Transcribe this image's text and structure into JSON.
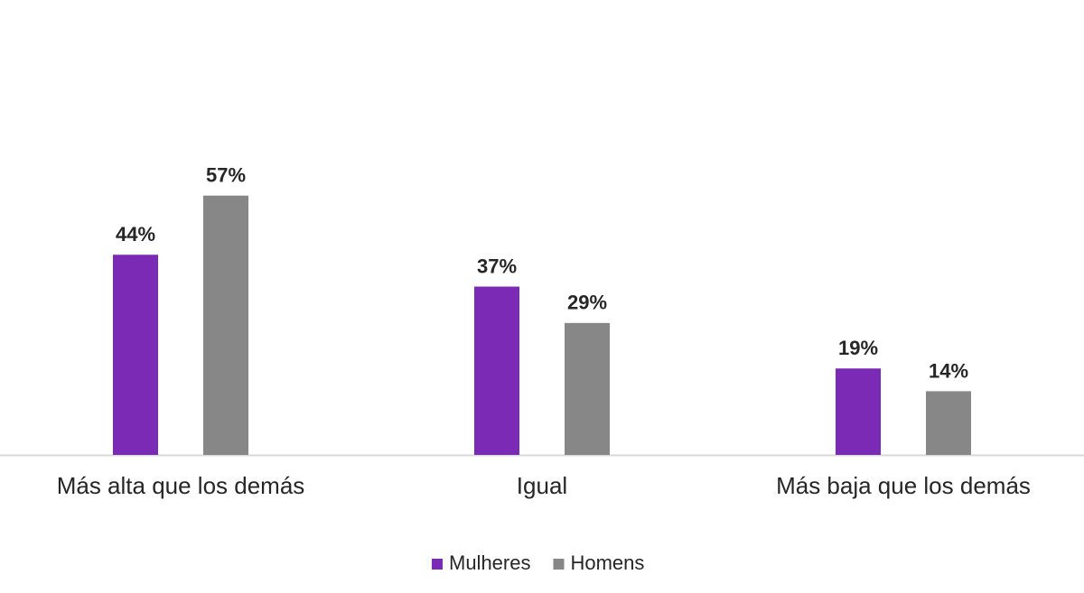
{
  "chart_data": {
    "type": "bar",
    "categories": [
      "Más alta que los demás",
      "Igual",
      "Más baja que los demás"
    ],
    "series": [
      {
        "name": "Mulheres",
        "color": "#7b2ab5",
        "values": [
          44,
          37,
          19
        ],
        "value_labels": [
          "44%",
          "37%",
          "19%"
        ]
      },
      {
        "name": "Homens",
        "color": "#878787",
        "values": [
          57,
          29,
          14
        ],
        "value_labels": [
          "57%",
          "29%",
          "14%"
        ]
      }
    ],
    "ylim": [
      0,
      100
    ],
    "legend": "bottom"
  }
}
